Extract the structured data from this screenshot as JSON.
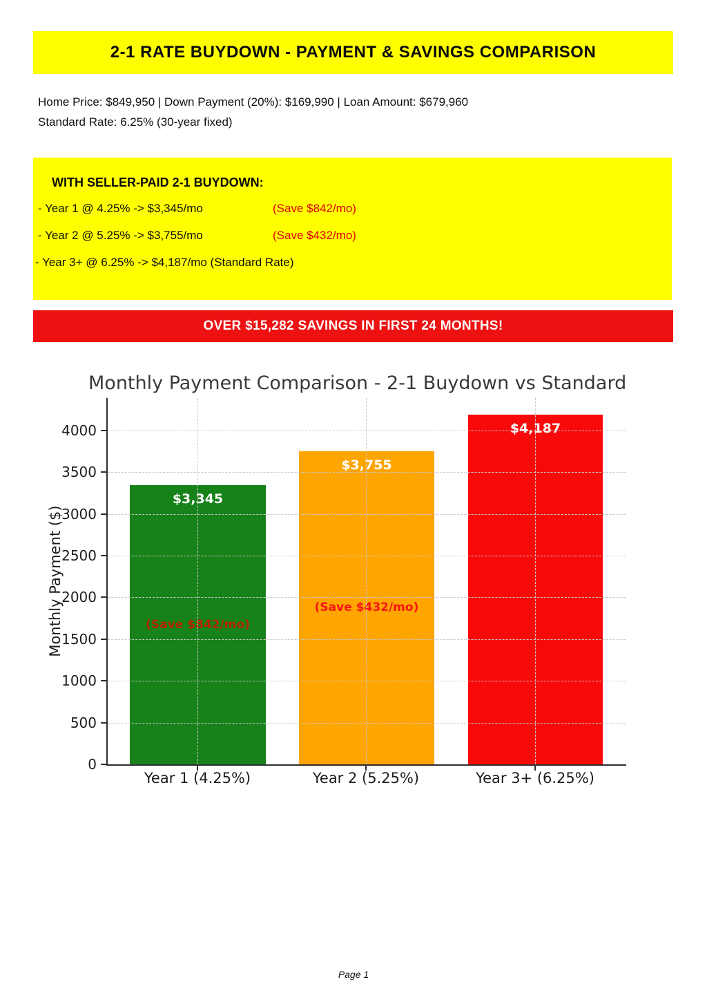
{
  "header": {
    "title": "2-1 RATE BUYDOWN - PAYMENT & SAVINGS COMPARISON",
    "bg_color": "#ffff00"
  },
  "intro": {
    "line1": "Home Price: $849,950 | Down Payment (20%): $169,990 | Loan Amount: $679,960",
    "line2": "Standard Rate: 6.25% (30-year fixed)"
  },
  "buydown_box": {
    "bg_color": "#ffff00",
    "heading": "WITH SELLER-PAID 2-1 BUYDOWN:",
    "rows": [
      {
        "text": "- Year 1 @ 4.25% -> $3,345/mo",
        "save": "(Save $842/mo)"
      },
      {
        "text": "- Year 2 @ 5.25% -> $3,755/mo",
        "save": "(Save $432/mo)"
      },
      {
        "text": "- Year 3+ @ 6.25% -> $4,187/mo (Standard Rate)",
        "save": ""
      }
    ],
    "save_text_color": "#e00000"
  },
  "savings_banner": {
    "text": "OVER $15,282 SAVINGS IN FIRST 24 MONTHS!",
    "bg_color": "#ed1111",
    "text_color": "#ffffff"
  },
  "chart_data": {
    "type": "bar",
    "title": "Monthly Payment Comparison - 2-1 Buydown vs Standard",
    "xlabel": "",
    "ylabel": "Monthly Payment ($)",
    "categories": [
      "Year 1 (4.25%)",
      "Year 2 (5.25%)",
      "Year 3+ (6.25%)"
    ],
    "values": [
      3345,
      3755,
      4187
    ],
    "bar_value_labels": [
      "$3,345",
      "$3,755",
      "$4,187"
    ],
    "bar_annotations": [
      "(Save $842/mo)",
      "(Save $432/mo)",
      ""
    ],
    "bar_colors": [
      "#178219",
      "#ffa500",
      "#f90a0a"
    ],
    "annotation_colors": [
      "#b42400",
      "#f51515",
      ""
    ],
    "ylim": [
      0,
      4350
    ],
    "yticks": [
      0,
      500,
      1000,
      1500,
      2000,
      2500,
      3000,
      3500,
      4000
    ],
    "grid": "dashed, horizontal at yticks and vertical at bar centers, drawn over bars",
    "legend": "none"
  },
  "footer": {
    "page_label": "Page 1"
  }
}
